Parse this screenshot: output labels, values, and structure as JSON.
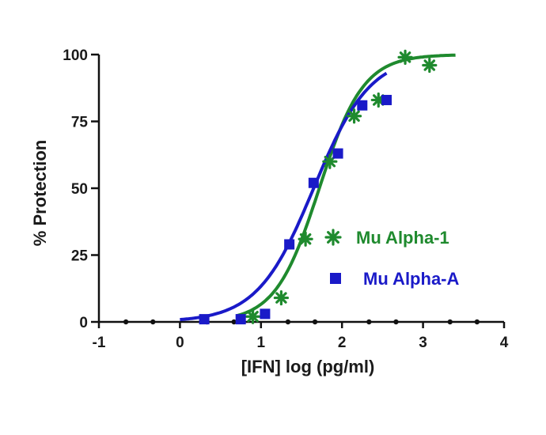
{
  "chart_data": {
    "type": "scatter",
    "xlabel": "[IFN] log (pg/ml)",
    "ylabel": "% Protection",
    "xlim": [
      -1,
      4
    ],
    "ylim": [
      0,
      100
    ],
    "x_ticks": [
      "-1",
      "0",
      "1",
      "2",
      "3",
      "4"
    ],
    "y_ticks": [
      "0",
      "25",
      "50",
      "75",
      "100"
    ],
    "grid": false,
    "legend_position": "right",
    "series": [
      {
        "name": "Mu Alpha-1",
        "color": "#1f8a2e",
        "marker": "asterisk",
        "points": [
          {
            "x": 0.9,
            "y": 2
          },
          {
            "x": 1.25,
            "y": 9
          },
          {
            "x": 1.55,
            "y": 31
          },
          {
            "x": 1.85,
            "y": 60
          },
          {
            "x": 2.15,
            "y": 77
          },
          {
            "x": 2.45,
            "y": 83
          },
          {
            "x": 2.78,
            "y": 99
          },
          {
            "x": 3.08,
            "y": 96
          }
        ],
        "fit": {
          "bottom": 0,
          "top": 100,
          "log_ec50": 1.72,
          "hill_slope": 1.6,
          "x_range": [
            0.7,
            3.4
          ]
        }
      },
      {
        "name": "Mu Alpha-A",
        "color": "#1a1ac8",
        "marker": "square",
        "points": [
          {
            "x": 0.3,
            "y": 1
          },
          {
            "x": 0.75,
            "y": 1
          },
          {
            "x": 1.05,
            "y": 3
          },
          {
            "x": 1.35,
            "y": 29
          },
          {
            "x": 1.65,
            "y": 52
          },
          {
            "x": 1.95,
            "y": 63
          },
          {
            "x": 2.25,
            "y": 81
          },
          {
            "x": 2.55,
            "y": 83
          }
        ],
        "fit": {
          "bottom": 0,
          "top": 100,
          "log_ec50": 1.65,
          "hill_slope": 1.25,
          "x_range": [
            0.0,
            2.55
          ]
        }
      }
    ]
  }
}
